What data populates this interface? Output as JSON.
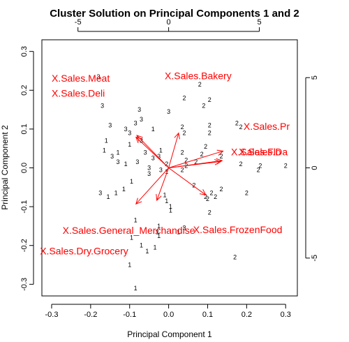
{
  "chart_data": {
    "type": "scatter",
    "title": "Cluster Solution on Principal Components 1 and 2",
    "xlabel": "Principal Component 1",
    "ylabel": "Principal Component 2",
    "xlim": [
      -0.325,
      0.33
    ],
    "ylim": [
      -0.33,
      0.33
    ],
    "x_ticks": [
      -0.3,
      -0.2,
      -0.1,
      0.0,
      0.1,
      0.2,
      0.3
    ],
    "y_ticks": [
      -0.3,
      -0.2,
      -0.1,
      0.0,
      0.1,
      0.2,
      0.3
    ],
    "x_tick_labels": [
      "-0.3",
      "-0.2",
      "-0.1",
      "0.0",
      "0.1",
      "0.2",
      "0.3"
    ],
    "y_tick_labels": [
      "-0.3",
      "-0.2",
      "-0.1",
      "0.0",
      "0.1",
      "0.2",
      "0.3"
    ],
    "top_axis_ticks": [
      -5,
      0,
      5
    ],
    "top_axis_tick_labels": [
      "-5",
      "0",
      "5"
    ],
    "right_axis_ticks": [
      5,
      0,
      -5
    ],
    "right_axis_tick_labels": [
      "5",
      "0",
      "-5"
    ],
    "loading_scale_per_unit": 0.0465,
    "loadings_color": "#ff0000",
    "points": [
      {
        "x": -0.18,
        "y": 0.235,
        "label": "3"
      },
      {
        "x": 0.08,
        "y": 0.215,
        "label": "2"
      },
      {
        "x": 0.04,
        "y": 0.18,
        "label": "2"
      },
      {
        "x": 0.105,
        "y": 0.175,
        "label": "2"
      },
      {
        "x": 0.09,
        "y": 0.16,
        "label": "2"
      },
      {
        "x": -0.17,
        "y": 0.16,
        "label": "3"
      },
      {
        "x": -0.075,
        "y": 0.15,
        "label": "3"
      },
      {
        "x": 0.0,
        "y": 0.145,
        "label": "3"
      },
      {
        "x": -0.07,
        "y": 0.125,
        "label": "3"
      },
      {
        "x": -0.085,
        "y": 0.115,
        "label": "3"
      },
      {
        "x": -0.15,
        "y": 0.11,
        "label": "3"
      },
      {
        "x": -0.11,
        "y": 0.1,
        "label": "3"
      },
      {
        "x": -0.04,
        "y": 0.1,
        "label": "1"
      },
      {
        "x": -0.1,
        "y": 0.09,
        "label": "3"
      },
      {
        "x": 0.035,
        "y": 0.105,
        "label": "2"
      },
      {
        "x": 0.105,
        "y": 0.11,
        "label": "2"
      },
      {
        "x": 0.175,
        "y": 0.115,
        "label": "2"
      },
      {
        "x": 0.105,
        "y": 0.09,
        "label": "2"
      },
      {
        "x": 0.04,
        "y": 0.09,
        "label": "2"
      },
      {
        "x": -0.16,
        "y": 0.07,
        "label": "1"
      },
      {
        "x": 0.185,
        "y": 0.105,
        "label": "2"
      },
      {
        "x": -0.07,
        "y": 0.07,
        "label": "3"
      },
      {
        "x": -0.1,
        "y": 0.06,
        "label": "1"
      },
      {
        "x": 0.095,
        "y": 0.055,
        "label": "2"
      },
      {
        "x": -0.165,
        "y": 0.045,
        "label": "1"
      },
      {
        "x": -0.13,
        "y": 0.04,
        "label": "1"
      },
      {
        "x": -0.06,
        "y": 0.04,
        "label": "3"
      },
      {
        "x": -0.02,
        "y": 0.045,
        "label": "1"
      },
      {
        "x": 0.035,
        "y": 0.04,
        "label": "2"
      },
      {
        "x": 0.085,
        "y": 0.035,
        "label": "2"
      },
      {
        "x": -0.025,
        "y": 0.03,
        "label": "3"
      },
      {
        "x": -0.04,
        "y": 0.025,
        "label": "3"
      },
      {
        "x": -0.145,
        "y": 0.03,
        "label": "3"
      },
      {
        "x": -0.11,
        "y": 0.01,
        "label": "1"
      },
      {
        "x": -0.08,
        "y": 0.015,
        "label": "3"
      },
      {
        "x": -0.13,
        "y": 0.015,
        "label": "3"
      },
      {
        "x": -0.005,
        "y": 0.01,
        "label": "2"
      },
      {
        "x": 0.045,
        "y": 0.02,
        "label": "2"
      },
      {
        "x": 0.07,
        "y": 0.015,
        "label": "2"
      },
      {
        "x": 0.135,
        "y": 0.03,
        "label": "2"
      },
      {
        "x": -0.05,
        "y": 0.0,
        "label": "3"
      },
      {
        "x": 0.045,
        "y": 0.005,
        "label": "2"
      },
      {
        "x": 0.185,
        "y": 0.01,
        "label": "2"
      },
      {
        "x": 0.235,
        "y": 0.005,
        "label": "2"
      },
      {
        "x": 0.3,
        "y": 0.005,
        "label": "2"
      },
      {
        "x": -0.02,
        "y": -0.005,
        "label": "3"
      },
      {
        "x": -0.005,
        "y": -0.01,
        "label": "1"
      },
      {
        "x": 0.035,
        "y": -0.005,
        "label": "2"
      },
      {
        "x": 0.23,
        "y": -0.005,
        "label": "2"
      },
      {
        "x": -0.05,
        "y": -0.015,
        "label": "3"
      },
      {
        "x": -0.095,
        "y": -0.035,
        "label": "1"
      },
      {
        "x": 0.065,
        "y": -0.045,
        "label": "2"
      },
      {
        "x": -0.115,
        "y": -0.055,
        "label": "1"
      },
      {
        "x": 0.135,
        "y": -0.055,
        "label": "2"
      },
      {
        "x": -0.135,
        "y": -0.065,
        "label": "1"
      },
      {
        "x": -0.175,
        "y": -0.065,
        "label": "3"
      },
      {
        "x": 0.11,
        "y": -0.065,
        "label": "2"
      },
      {
        "x": 0.2,
        "y": -0.065,
        "label": "2"
      },
      {
        "x": -0.01,
        "y": -0.07,
        "label": "1"
      },
      {
        "x": 0.095,
        "y": -0.075,
        "label": "2"
      },
      {
        "x": -0.155,
        "y": -0.075,
        "label": "1"
      },
      {
        "x": 0.1,
        "y": -0.08,
        "label": "2"
      },
      {
        "x": -0.005,
        "y": -0.085,
        "label": "1"
      },
      {
        "x": 0.12,
        "y": -0.075,
        "label": "2"
      },
      {
        "x": 0.005,
        "y": -0.1,
        "label": "1"
      },
      {
        "x": 0.005,
        "y": -0.11,
        "label": "1"
      },
      {
        "x": 0.105,
        "y": -0.115,
        "label": "2"
      },
      {
        "x": -0.085,
        "y": -0.135,
        "label": "1"
      },
      {
        "x": -0.025,
        "y": -0.15,
        "label": "1"
      },
      {
        "x": 0.04,
        "y": -0.155,
        "label": "3"
      },
      {
        "x": 0.025,
        "y": -0.165,
        "label": "1"
      },
      {
        "x": -0.03,
        "y": -0.165,
        "label": "3"
      },
      {
        "x": -0.025,
        "y": -0.175,
        "label": "1"
      },
      {
        "x": -0.095,
        "y": -0.18,
        "label": "1"
      },
      {
        "x": -0.07,
        "y": -0.2,
        "label": "1"
      },
      {
        "x": -0.035,
        "y": -0.205,
        "label": "1"
      },
      {
        "x": -0.055,
        "y": -0.215,
        "label": "1"
      },
      {
        "x": -0.1,
        "y": -0.25,
        "label": "1"
      },
      {
        "x": 0.17,
        "y": -0.23,
        "label": "2"
      },
      {
        "x": -0.085,
        "y": -0.31,
        "label": "1"
      }
    ],
    "loadings": [
      {
        "name": "X.Sales.Meat",
        "x": -1.75,
        "y": 1.8,
        "label_x": -0.3,
        "label_y": 0.222
      },
      {
        "name": "X.Sales.Deli",
        "x": -1.8,
        "y": 1.7,
        "label_x": -0.3,
        "label_y": 0.183
      },
      {
        "name": "X.Sales.Bakery",
        "x": 0.55,
        "y": 1.93,
        "label_x": -0.01,
        "label_y": 0.228
      },
      {
        "name": "X.Sales.Pr",
        "x": 3.0,
        "y": 0.93,
        "label_x": 0.192,
        "label_y": 0.098
      },
      {
        "name": "X.Sales.Flo",
        "x": 2.85,
        "y": 0.35,
        "label_x": 0.16,
        "label_y": 0.032
      },
      {
        "name": "X.Sales.Da",
        "x": 2.95,
        "y": 0.4,
        "label_x": 0.18,
        "label_y": 0.032
      },
      {
        "name": "X.Sales.FrozenFood",
        "x": 2.05,
        "y": -1.5,
        "label_x": 0.063,
        "label_y": -0.168
      },
      {
        "name": "X.Sales.General_Merchandise",
        "x": -0.65,
        "y": -1.8,
        "label_x": -0.272,
        "label_y": -0.17
      },
      {
        "name": "X.Sales.Dry.Grocery",
        "x": -1.8,
        "y": -2.0,
        "label_x": -0.33,
        "label_y": -0.223
      }
    ]
  }
}
